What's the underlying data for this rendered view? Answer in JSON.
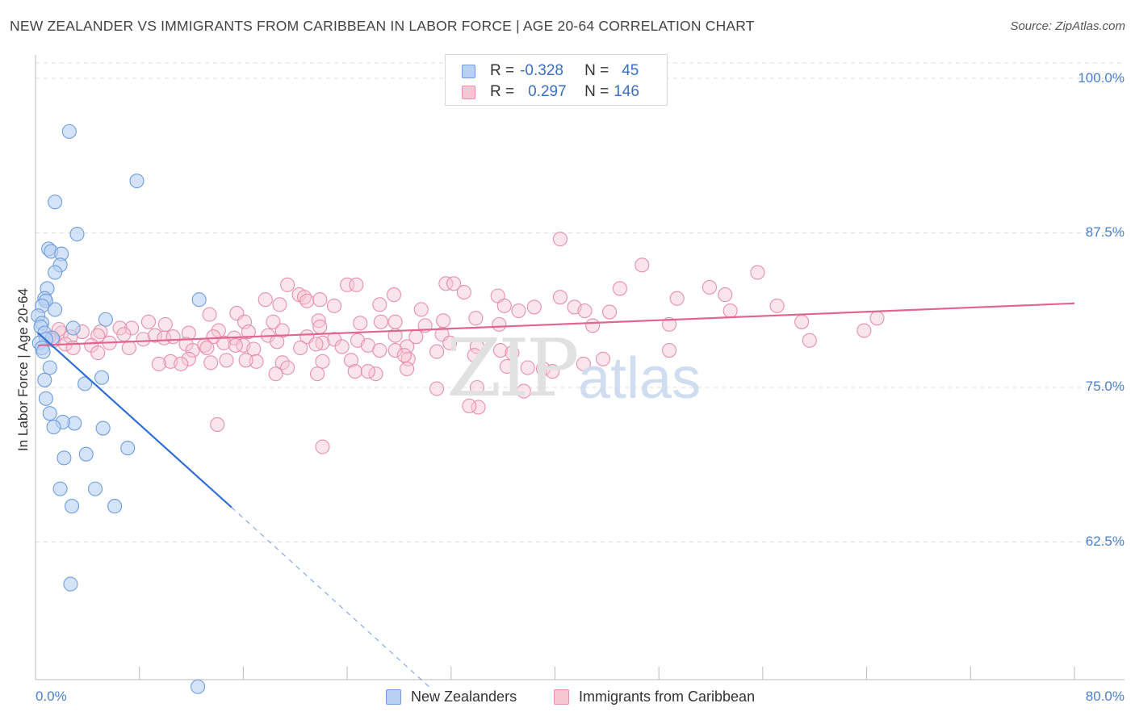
{
  "title": "NEW ZEALANDER VS IMMIGRANTS FROM CARIBBEAN IN LABOR FORCE | AGE 20-64 CORRELATION CHART",
  "source": "Source: ZipAtlas.com",
  "watermark": {
    "zip": "ZIP",
    "atlas": "atlas"
  },
  "colors": {
    "blue_fill": "#b8d0f2",
    "blue_stroke": "#6f9de0",
    "blue_line": "#2f6fd6",
    "pink_fill": "#f7c6d4",
    "pink_stroke": "#e690ab",
    "pink_line": "#e06590",
    "grid": "#dddddd",
    "tick_text": "#4a7fcf"
  },
  "stats": {
    "blue": {
      "r_label": "R =",
      "r": "-0.328",
      "n_label": "N =",
      "n": "45"
    },
    "pink": {
      "r_label": "R =",
      "r": "0.297",
      "n_label": "N =",
      "n": "146"
    }
  },
  "legend": {
    "blue": "New Zealanders",
    "pink": "Immigrants from Caribbean"
  },
  "chart_data": {
    "type": "scatter",
    "title": "NEW ZEALANDER VS IMMIGRANTS FROM CARIBBEAN IN LABOR FORCE | AGE 20-64 CORRELATION CHART",
    "xlabel": "",
    "ylabel": "In Labor Force | Age 20-64",
    "xlim": [
      0,
      80
    ],
    "ylim": [
      50,
      103
    ],
    "x_tick_labels": [
      "0.0%",
      "80.0%"
    ],
    "y_ticks": [
      62.5,
      75.0,
      87.5,
      100.0
    ],
    "y_tick_labels": [
      "62.5%",
      "75.0%",
      "87.5%",
      "100.0%"
    ],
    "grid": true,
    "series": [
      {
        "name": "New Zealanders",
        "color": "#6f9de0",
        "points": [
          [
            2.6,
            95.7
          ],
          [
            7.8,
            91.7
          ],
          [
            1.5,
            90.0
          ],
          [
            3.2,
            87.4
          ],
          [
            1.0,
            86.2
          ],
          [
            1.2,
            86.0
          ],
          [
            2.0,
            85.8
          ],
          [
            1.9,
            84.9
          ],
          [
            1.5,
            84.3
          ],
          [
            0.9,
            83.0
          ],
          [
            0.7,
            82.2
          ],
          [
            0.8,
            82.0
          ],
          [
            12.6,
            82.1
          ],
          [
            0.5,
            81.6
          ],
          [
            1.5,
            81.3
          ],
          [
            0.2,
            80.8
          ],
          [
            0.5,
            80.2
          ],
          [
            0.4,
            79.9
          ],
          [
            5.4,
            80.5
          ],
          [
            2.9,
            79.8
          ],
          [
            0.7,
            79.4
          ],
          [
            1.3,
            79.0
          ],
          [
            0.8,
            78.9
          ],
          [
            0.3,
            78.6
          ],
          [
            0.5,
            78.2
          ],
          [
            0.6,
            77.9
          ],
          [
            1.1,
            76.6
          ],
          [
            5.1,
            75.8
          ],
          [
            3.8,
            75.3
          ],
          [
            0.7,
            75.6
          ],
          [
            0.8,
            74.1
          ],
          [
            1.1,
            72.9
          ],
          [
            3.0,
            72.1
          ],
          [
            2.1,
            72.2
          ],
          [
            1.4,
            71.8
          ],
          [
            5.2,
            71.7
          ],
          [
            7.1,
            70.1
          ],
          [
            3.9,
            69.6
          ],
          [
            2.2,
            69.3
          ],
          [
            1.9,
            66.8
          ],
          [
            4.6,
            66.8
          ],
          [
            2.8,
            65.4
          ],
          [
            6.1,
            65.4
          ],
          [
            2.7,
            59.1
          ],
          [
            12.5,
            50.8
          ]
        ]
      },
      {
        "name": "Immigrants from Caribbean",
        "color": "#e690ab",
        "points": [
          [
            40.4,
            87.0
          ],
          [
            46.7,
            84.9
          ],
          [
            55.6,
            84.3
          ],
          [
            19.4,
            83.3
          ],
          [
            24.0,
            83.3
          ],
          [
            24.7,
            83.3
          ],
          [
            31.6,
            83.4
          ],
          [
            32.2,
            83.4
          ],
          [
            33.0,
            82.7
          ],
          [
            45.0,
            83.0
          ],
          [
            51.9,
            83.1
          ],
          [
            53.1,
            82.5
          ],
          [
            20.3,
            82.5
          ],
          [
            20.7,
            82.3
          ],
          [
            20.9,
            82.0
          ],
          [
            27.6,
            82.5
          ],
          [
            35.6,
            82.4
          ],
          [
            40.4,
            82.3
          ],
          [
            49.4,
            82.2
          ],
          [
            17.7,
            82.1
          ],
          [
            21.9,
            82.1
          ],
          [
            38.4,
            81.5
          ],
          [
            18.8,
            81.7
          ],
          [
            23.0,
            81.6
          ],
          [
            26.5,
            81.7
          ],
          [
            36.1,
            81.6
          ],
          [
            41.5,
            81.5
          ],
          [
            42.3,
            81.2
          ],
          [
            37.2,
            81.2
          ],
          [
            57.1,
            81.6
          ],
          [
            53.5,
            81.2
          ],
          [
            29.7,
            81.3
          ],
          [
            15.5,
            81.0
          ],
          [
            44.2,
            81.1
          ],
          [
            13.4,
            80.9
          ],
          [
            16.1,
            80.3
          ],
          [
            18.3,
            80.3
          ],
          [
            21.8,
            80.4
          ],
          [
            25.0,
            80.2
          ],
          [
            26.6,
            80.3
          ],
          [
            27.7,
            80.3
          ],
          [
            31.4,
            80.4
          ],
          [
            35.7,
            80.1
          ],
          [
            59.0,
            80.3
          ],
          [
            33.9,
            80.6
          ],
          [
            64.8,
            80.6
          ],
          [
            42.9,
            80.0
          ],
          [
            48.8,
            80.1
          ],
          [
            30.0,
            80.0
          ],
          [
            21.9,
            79.9
          ],
          [
            19.0,
            79.6
          ],
          [
            16.4,
            79.5
          ],
          [
            14.1,
            79.6
          ],
          [
            10.0,
            80.1
          ],
          [
            8.7,
            80.3
          ],
          [
            7.4,
            79.8
          ],
          [
            6.5,
            79.8
          ],
          [
            5.0,
            79.5
          ],
          [
            3.6,
            79.5
          ],
          [
            4.8,
            79.2
          ],
          [
            6.8,
            79.3
          ],
          [
            2.0,
            79.4
          ],
          [
            2.7,
            79.1
          ],
          [
            1.8,
            79.7
          ],
          [
            1.0,
            79.0
          ],
          [
            1.4,
            78.8
          ],
          [
            2.3,
            78.5
          ],
          [
            5.7,
            78.6
          ],
          [
            8.3,
            78.9
          ],
          [
            9.2,
            79.2
          ],
          [
            11.8,
            79.4
          ],
          [
            13.7,
            79.1
          ],
          [
            15.3,
            79.0
          ],
          [
            17.9,
            79.2
          ],
          [
            20.9,
            79.1
          ],
          [
            23.0,
            78.9
          ],
          [
            24.8,
            78.8
          ],
          [
            27.7,
            79.2
          ],
          [
            29.3,
            79.1
          ],
          [
            31.3,
            79.3
          ],
          [
            11.6,
            78.5
          ],
          [
            13.0,
            78.4
          ],
          [
            14.5,
            78.6
          ],
          [
            16.0,
            78.4
          ],
          [
            18.6,
            78.7
          ],
          [
            22.1,
            78.6
          ],
          [
            25.6,
            78.4
          ],
          [
            28.6,
            78.3
          ],
          [
            31.9,
            78.6
          ],
          [
            12.1,
            78.0
          ],
          [
            13.2,
            78.2
          ],
          [
            15.4,
            78.4
          ],
          [
            16.8,
            78.1
          ],
          [
            20.4,
            78.2
          ],
          [
            21.6,
            78.5
          ],
          [
            23.6,
            78.3
          ],
          [
            26.5,
            78.0
          ],
          [
            27.7,
            78.0
          ],
          [
            9.9,
            79.0
          ],
          [
            10.6,
            79.1
          ],
          [
            7.2,
            78.2
          ],
          [
            4.3,
            78.4
          ],
          [
            4.8,
            77.8
          ],
          [
            2.9,
            78.2
          ],
          [
            34.0,
            78.3
          ],
          [
            35.8,
            78.0
          ],
          [
            30.9,
            77.9
          ],
          [
            33.8,
            77.6
          ],
          [
            36.7,
            77.8
          ],
          [
            28.7,
            77.3
          ],
          [
            24.3,
            77.2
          ],
          [
            22.1,
            77.1
          ],
          [
            19.0,
            77.0
          ],
          [
            17.0,
            77.1
          ],
          [
            16.2,
            77.2
          ],
          [
            14.7,
            77.2
          ],
          [
            13.5,
            77.0
          ],
          [
            11.8,
            77.3
          ],
          [
            10.4,
            77.1
          ],
          [
            9.5,
            76.9
          ],
          [
            11.2,
            76.9
          ],
          [
            19.4,
            76.6
          ],
          [
            24.6,
            76.3
          ],
          [
            26.2,
            76.1
          ],
          [
            18.5,
            76.1
          ],
          [
            21.7,
            76.1
          ],
          [
            25.6,
            76.3
          ],
          [
            28.6,
            76.5
          ],
          [
            36.3,
            76.7
          ],
          [
            37.9,
            76.6
          ],
          [
            39.1,
            76.5
          ],
          [
            39.8,
            76.3
          ],
          [
            42.2,
            76.9
          ],
          [
            43.7,
            77.3
          ],
          [
            48.8,
            78.0
          ],
          [
            59.6,
            78.8
          ],
          [
            30.9,
            74.9
          ],
          [
            34.0,
            75.0
          ],
          [
            37.6,
            74.7
          ],
          [
            34.1,
            73.4
          ],
          [
            33.4,
            73.5
          ],
          [
            14.0,
            72.0
          ],
          [
            22.1,
            70.2
          ],
          [
            63.8,
            79.6
          ],
          [
            28.4,
            77.6
          ]
        ]
      }
    ],
    "trend_lines": [
      {
        "series": "New Zealanders",
        "x0": 0.2,
        "y0": 79.4,
        "x1": 15.1,
        "y1": 65.3,
        "dashed_extension_to": [
          30.4,
          50.7
        ]
      },
      {
        "series": "Immigrants from Caribbean",
        "x0": 0.2,
        "y0": 78.4,
        "x1": 80.0,
        "y1": 81.8
      }
    ]
  }
}
